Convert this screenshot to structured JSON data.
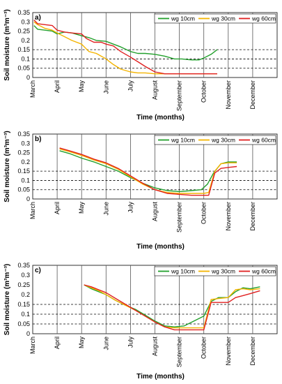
{
  "chart_data": [
    {
      "type": "line",
      "panel_label": "a)",
      "ylabel": "Soil moisture (m³m⁻³)",
      "xlabel": "Time (months)",
      "ylim": [
        0,
        0.35
      ],
      "yticks": [
        "0",
        "0.05",
        "0.1",
        "0.15",
        "0.2",
        "0.25",
        "0.3",
        "0.35"
      ],
      "months": [
        "March",
        "April",
        "May",
        "June",
        "July",
        "August",
        "September",
        "October",
        "November",
        "December"
      ],
      "reference_lines": [
        0.05,
        0.1,
        0.15
      ],
      "legend_position": "top-right",
      "series": [
        {
          "name": "wg 10cm",
          "color": "#22a02c",
          "x": [
            0.05,
            0.2,
            0.5,
            0.8,
            1.0,
            1.3,
            1.6,
            2.0,
            2.3,
            2.6,
            3.0,
            3.3,
            3.6,
            4.0,
            4.3,
            4.6,
            5.0,
            5.4,
            5.8,
            6.1,
            6.5,
            6.8,
            7.0,
            7.3,
            7.55
          ],
          "y": [
            0.28,
            0.26,
            0.255,
            0.25,
            0.235,
            0.245,
            0.24,
            0.225,
            0.215,
            0.2,
            0.195,
            0.18,
            0.165,
            0.14,
            0.13,
            0.13,
            0.125,
            0.115,
            0.1,
            0.1,
            0.095,
            0.095,
            0.105,
            0.125,
            0.15
          ]
        },
        {
          "name": "wg 30cm",
          "color": "#f4b400",
          "x": [
            0.05,
            0.2,
            0.5,
            0.8,
            1.0,
            1.3,
            1.6,
            2.0,
            2.3,
            2.6,
            3.0,
            3.3,
            3.6,
            4.0,
            4.3,
            4.6,
            5.0,
            5.4,
            5.8,
            6.2,
            6.6,
            7.0,
            7.55
          ],
          "y": [
            0.3,
            0.285,
            0.265,
            0.255,
            0.24,
            0.22,
            0.2,
            0.18,
            0.14,
            0.13,
            0.1,
            0.07,
            0.045,
            0.03,
            0.025,
            0.025,
            0.02,
            0.02,
            0.02,
            0.02,
            0.02,
            0.02,
            0.02
          ]
        },
        {
          "name": "wg 60cm",
          "color": "#e02020",
          "x": [
            0.05,
            0.2,
            0.5,
            0.8,
            1.0,
            1.3,
            1.6,
            2.0,
            2.2,
            2.5,
            2.8,
            3.0,
            3.3,
            3.6,
            4.0,
            4.3,
            4.6,
            5.0,
            5.4,
            5.8,
            6.2,
            6.6,
            7.0,
            7.55
          ],
          "y": [
            0.31,
            0.29,
            0.285,
            0.28,
            0.255,
            0.245,
            0.24,
            0.235,
            0.21,
            0.19,
            0.19,
            0.18,
            0.17,
            0.14,
            0.11,
            0.085,
            0.06,
            0.03,
            0.02,
            0.02,
            0.02,
            0.02,
            0.02,
            0.02
          ]
        }
      ]
    },
    {
      "type": "line",
      "panel_label": "b)",
      "ylabel": "Soil moisture (m³m⁻³)",
      "xlabel": "Time (months)",
      "ylim": [
        0,
        0.35
      ],
      "yticks": [
        "0",
        "0.05",
        "0.1",
        "0.15",
        "0.2",
        "0.25",
        "0.3",
        "0.35"
      ],
      "months": [
        "March",
        "April",
        "May",
        "June",
        "July",
        "August",
        "September",
        "October",
        "November",
        "December"
      ],
      "reference_lines": [
        0.05,
        0.1,
        0.15
      ],
      "legend_position": "top-right",
      "series": [
        {
          "name": "wg 10cm",
          "color": "#22a02c",
          "x": [
            1.1,
            1.5,
            2.0,
            2.5,
            3.0,
            3.5,
            4.0,
            4.5,
            5.0,
            5.5,
            6.0,
            6.5,
            6.9,
            7.15,
            7.4,
            7.7,
            8.0,
            8.35
          ],
          "y": [
            0.26,
            0.245,
            0.22,
            0.2,
            0.175,
            0.15,
            0.115,
            0.085,
            0.06,
            0.045,
            0.04,
            0.045,
            0.05,
            0.08,
            0.14,
            0.19,
            0.2,
            0.2
          ]
        },
        {
          "name": "wg 30cm",
          "color": "#f4b400",
          "x": [
            1.1,
            1.5,
            2.0,
            2.5,
            3.0,
            3.5,
            4.0,
            4.5,
            5.0,
            5.5,
            6.0,
            6.5,
            7.0,
            7.2,
            7.45,
            7.7,
            8.0,
            8.35
          ],
          "y": [
            0.27,
            0.255,
            0.235,
            0.21,
            0.19,
            0.16,
            0.12,
            0.08,
            0.05,
            0.035,
            0.03,
            0.03,
            0.03,
            0.035,
            0.15,
            0.19,
            0.195,
            0.195
          ]
        },
        {
          "name": "wg 60cm",
          "color": "#e02020",
          "x": [
            1.1,
            1.5,
            2.0,
            2.5,
            3.0,
            3.5,
            4.0,
            4.5,
            5.0,
            5.5,
            6.0,
            6.5,
            7.0,
            7.2,
            7.45,
            7.7,
            8.0,
            8.35
          ],
          "y": [
            0.275,
            0.26,
            0.24,
            0.215,
            0.195,
            0.165,
            0.125,
            0.085,
            0.05,
            0.03,
            0.025,
            0.02,
            0.02,
            0.02,
            0.14,
            0.165,
            0.17,
            0.175
          ]
        }
      ]
    },
    {
      "type": "line",
      "panel_label": "c)",
      "ylabel": "Soil moisture (m³m⁻³)",
      "xlabel": "Time (months)",
      "ylim": [
        0,
        0.35
      ],
      "yticks": [
        "0",
        "0.05",
        "0.1",
        "0.15",
        "0.2",
        "0.25",
        "0.3",
        "0.35"
      ],
      "months": [
        "March",
        "April",
        "May",
        "June",
        "July",
        "August",
        "September",
        "October",
        "November",
        "December"
      ],
      "reference_lines": [
        0.05,
        0.1,
        0.15
      ],
      "legend_position": "top-right",
      "series": [
        {
          "name": "wg 10cm",
          "color": "#22a02c",
          "x": [
            2.1,
            2.4,
            2.7,
            3.0,
            3.4,
            3.8,
            4.2,
            4.6,
            5.0,
            5.4,
            5.8,
            6.2,
            6.6,
            7.0,
            7.3,
            7.6,
            8.0,
            8.3,
            8.6,
            8.9,
            9.3
          ],
          "y": [
            0.25,
            0.23,
            0.215,
            0.2,
            0.17,
            0.145,
            0.125,
            0.095,
            0.065,
            0.04,
            0.035,
            0.04,
            0.065,
            0.09,
            0.165,
            0.185,
            0.185,
            0.215,
            0.235,
            0.23,
            0.24
          ]
        },
        {
          "name": "wg 30cm",
          "color": "#f4b400",
          "x": [
            2.1,
            2.4,
            2.7,
            3.0,
            3.4,
            3.8,
            4.2,
            4.6,
            5.0,
            5.4,
            5.8,
            6.2,
            6.6,
            7.0,
            7.3,
            7.6,
            8.0,
            8.3,
            8.6,
            8.9,
            9.3
          ],
          "y": [
            0.25,
            0.235,
            0.22,
            0.2,
            0.17,
            0.145,
            0.12,
            0.09,
            0.06,
            0.035,
            0.03,
            0.03,
            0.03,
            0.03,
            0.175,
            0.18,
            0.185,
            0.225,
            0.23,
            0.225,
            0.23
          ]
        },
        {
          "name": "wg 60cm",
          "color": "#e02020",
          "x": [
            2.1,
            2.4,
            2.7,
            3.0,
            3.4,
            3.8,
            4.2,
            4.6,
            5.0,
            5.4,
            5.8,
            6.2,
            6.6,
            7.0,
            7.3,
            7.6,
            8.0,
            8.3,
            8.6,
            8.9,
            9.3
          ],
          "y": [
            0.25,
            0.24,
            0.225,
            0.21,
            0.18,
            0.15,
            0.12,
            0.09,
            0.06,
            0.035,
            0.02,
            0.02,
            0.02,
            0.02,
            0.16,
            0.16,
            0.16,
            0.185,
            0.195,
            0.205,
            0.22
          ]
        }
      ]
    }
  ]
}
